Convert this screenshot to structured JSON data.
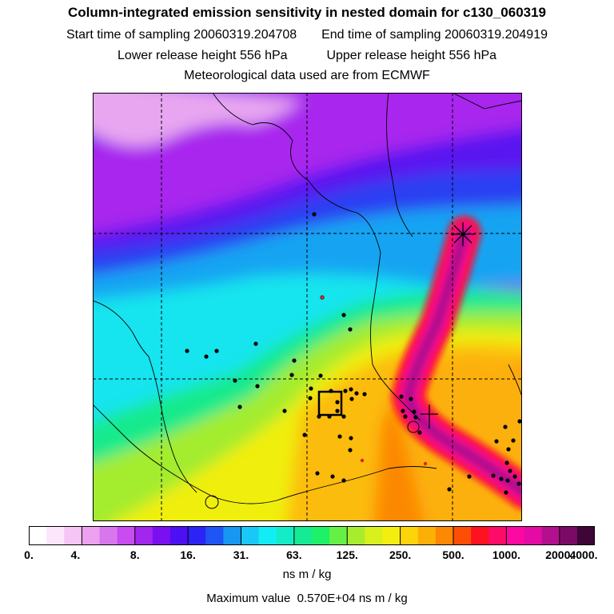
{
  "header": {
    "title": "Column-integrated emission sensitivity in nested domain for c130_060319",
    "start_label": "Start time of sampling",
    "start_value": "20060319.204708",
    "end_label": "End time of sampling",
    "end_value": "20060319.204919",
    "lower_label": "Lower release height",
    "lower_value": "556 hPa",
    "upper_label": "Upper release height",
    "upper_value": "556 hPa",
    "met": "Meteorological data used are from ECMWF"
  },
  "legend": {
    "colors": [
      "#ffffff",
      "#fbe6fb",
      "#f5c6f5",
      "#eca2ee",
      "#d877ec",
      "#c84cf0",
      "#a226ee",
      "#7a10f0",
      "#4d10f2",
      "#2c24f4",
      "#1d56f4",
      "#1796f2",
      "#19c8f6",
      "#12ecf4",
      "#14ecc6",
      "#16ea94",
      "#1ef068",
      "#66f046",
      "#a8ec2e",
      "#d8f01c",
      "#f4ee10",
      "#fcd40a",
      "#fcb006",
      "#fc8804",
      "#fc4e04",
      "#fc1220",
      "#fc0c66",
      "#fc08a2",
      "#e40aa4",
      "#b2108e",
      "#7a0a66",
      "#3e0636"
    ],
    "ticks": [
      "0.",
      "4.",
      "8.",
      "16.",
      "31.",
      "63.",
      "125.",
      "250.",
      "500.",
      "1000.",
      "2000.",
      "4000."
    ],
    "units": "ns m / kg",
    "max_label": "Maximum value",
    "max_value": "0.570E+04 ns m / kg"
  }
}
